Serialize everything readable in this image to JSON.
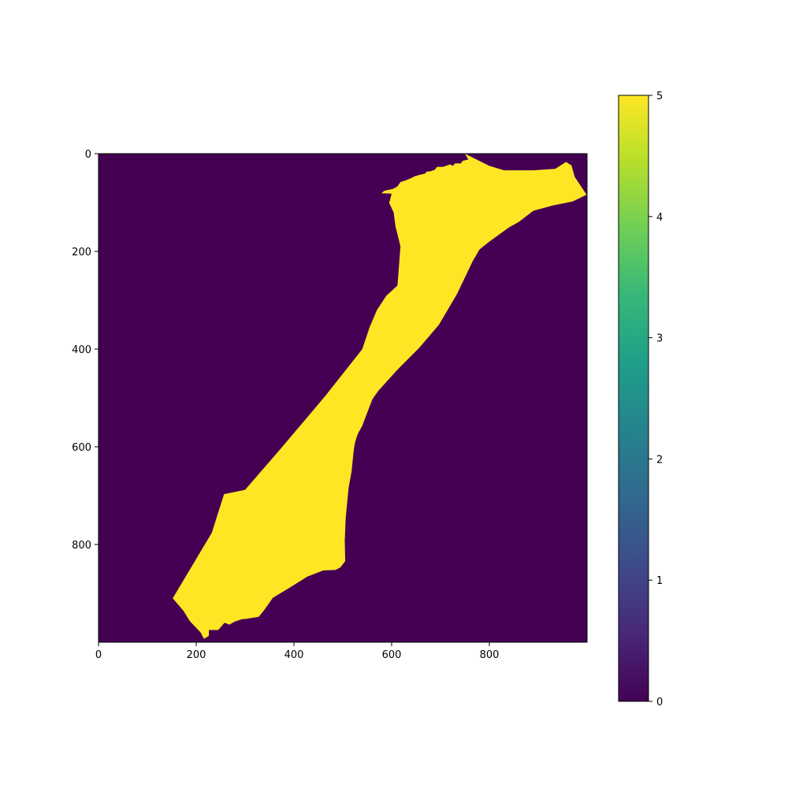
{
  "chart_data": {
    "type": "heatmap",
    "title": "",
    "xlabel": "",
    "ylabel": "",
    "xlim": [
      0,
      1000
    ],
    "ylim": [
      1000,
      0
    ],
    "x_ticks": [
      0,
      200,
      400,
      600,
      800
    ],
    "y_ticks": [
      0,
      200,
      400,
      600,
      800
    ],
    "grid": false,
    "background_value": 0,
    "region_value": 5,
    "region_outline": [
      [
        750,
        0
      ],
      [
        757,
        12
      ],
      [
        745,
        15
      ],
      [
        742,
        20
      ],
      [
        730,
        20
      ],
      [
        725,
        25
      ],
      [
        720,
        22
      ],
      [
        705,
        27
      ],
      [
        693,
        27
      ],
      [
        688,
        33
      ],
      [
        680,
        36
      ],
      [
        672,
        37
      ],
      [
        668,
        41
      ],
      [
        658,
        43
      ],
      [
        648,
        46
      ],
      [
        640,
        50
      ],
      [
        628,
        55
      ],
      [
        618,
        58
      ],
      [
        612,
        67
      ],
      [
        603,
        72
      ],
      [
        585,
        76
      ],
      [
        579,
        81
      ],
      [
        600,
        82
      ],
      [
        595,
        101
      ],
      [
        604,
        120
      ],
      [
        608,
        150
      ],
      [
        612,
        165
      ],
      [
        618,
        190
      ],
      [
        612,
        270
      ],
      [
        589,
        291
      ],
      [
        570,
        320
      ],
      [
        555,
        355
      ],
      [
        540,
        400
      ],
      [
        465,
        495
      ],
      [
        372,
        605
      ],
      [
        300,
        688
      ],
      [
        257,
        697
      ],
      [
        232,
        776
      ],
      [
        152,
        910
      ],
      [
        174,
        936
      ],
      [
        187,
        957
      ],
      [
        209,
        980
      ],
      [
        216,
        993
      ],
      [
        226,
        987
      ],
      [
        226,
        975
      ],
      [
        245,
        975
      ],
      [
        258,
        960
      ],
      [
        268,
        964
      ],
      [
        278,
        958
      ],
      [
        293,
        953
      ],
      [
        303,
        952
      ],
      [
        328,
        948
      ],
      [
        340,
        933
      ],
      [
        357,
        909
      ],
      [
        390,
        889
      ],
      [
        427,
        866
      ],
      [
        460,
        853
      ],
      [
        485,
        852
      ],
      [
        495,
        847
      ],
      [
        505,
        834
      ],
      [
        504,
        792
      ],
      [
        506,
        746
      ],
      [
        512,
        684
      ],
      [
        518,
        650
      ],
      [
        520,
        631
      ],
      [
        522,
        611
      ],
      [
        525,
        591
      ],
      [
        531,
        573
      ],
      [
        540,
        557
      ],
      [
        547,
        538
      ],
      [
        561,
        502
      ],
      [
        573,
        485
      ],
      [
        611,
        443
      ],
      [
        657,
        397
      ],
      [
        697,
        350
      ],
      [
        734,
        287
      ],
      [
        766,
        220
      ],
      [
        780,
        196
      ],
      [
        800,
        180
      ],
      [
        840,
        151
      ],
      [
        860,
        140
      ],
      [
        890,
        117
      ],
      [
        930,
        106
      ],
      [
        970,
        98
      ],
      [
        999,
        84
      ],
      [
        975,
        48
      ],
      [
        968,
        24
      ],
      [
        957,
        17
      ],
      [
        935,
        31
      ],
      [
        890,
        34
      ],
      [
        830,
        34
      ],
      [
        800,
        25
      ],
      [
        770,
        10
      ]
    ],
    "colormap": "viridis",
    "colorbar": {
      "min": 0,
      "max": 5,
      "ticks": [
        0,
        1,
        2,
        3,
        4,
        5
      ],
      "colors": [
        "#440154",
        "#482878",
        "#3e4a89",
        "#31688e",
        "#26828e",
        "#1f9e89",
        "#35b779",
        "#6ece58",
        "#b5de2b",
        "#fde725"
      ]
    }
  }
}
